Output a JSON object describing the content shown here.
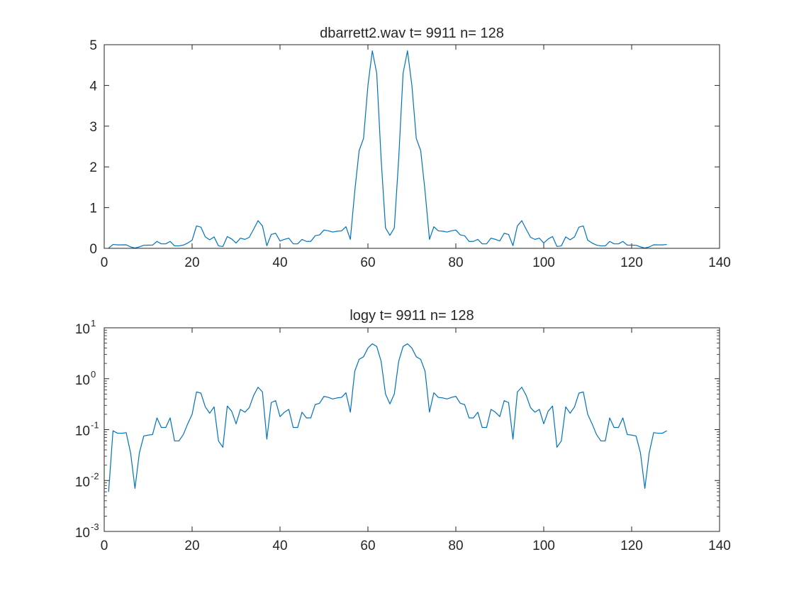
{
  "chart_data": [
    {
      "type": "line",
      "title": "dbarrett2.wav  t= 9911 n= 128",
      "xlabel": "",
      "ylabel": "",
      "xlim": [
        0,
        140
      ],
      "ylim": [
        0,
        5
      ],
      "yscale": "linear",
      "x_ticks": [
        "0",
        "20",
        "40",
        "60",
        "80",
        "100",
        "120",
        "140"
      ],
      "y_ticks": [
        "0",
        "1",
        "2",
        "3",
        "4",
        "5"
      ],
      "grid": false,
      "line_color": "#0072bd",
      "x": [
        1,
        2,
        3,
        4,
        5,
        6,
        7,
        8,
        9,
        10,
        11,
        12,
        13,
        14,
        15,
        16,
        17,
        18,
        19,
        20,
        21,
        22,
        23,
        24,
        25,
        26,
        27,
        28,
        29,
        30,
        31,
        32,
        33,
        34,
        35,
        36,
        37,
        38,
        39,
        40,
        41,
        42,
        43,
        44,
        45,
        46,
        47,
        48,
        49,
        50,
        51,
        52,
        53,
        54,
        55,
        56,
        57,
        58,
        59,
        60,
        61,
        62,
        63,
        64,
        65,
        66,
        67,
        68,
        69,
        70,
        71,
        72,
        73,
        74,
        75,
        76,
        77,
        78,
        79,
        80,
        81,
        82,
        83,
        84,
        85,
        86,
        87,
        88,
        89,
        90,
        91,
        92,
        93,
        94,
        95,
        96,
        97,
        98,
        99,
        100,
        101,
        102,
        103,
        104,
        105,
        106,
        107,
        108,
        109,
        110,
        111,
        112,
        113,
        114,
        115,
        116,
        117,
        118,
        119,
        120,
        121,
        122,
        123,
        124,
        125,
        126,
        127,
        128
      ],
      "y": [
        0.006,
        0.095,
        0.085,
        0.085,
        0.087,
        0.035,
        0.007,
        0.035,
        0.075,
        0.078,
        0.08,
        0.17,
        0.11,
        0.11,
        0.17,
        0.06,
        0.06,
        0.08,
        0.13,
        0.2,
        0.55,
        0.52,
        0.28,
        0.21,
        0.28,
        0.06,
        0.045,
        0.29,
        0.23,
        0.13,
        0.25,
        0.22,
        0.27,
        0.47,
        0.68,
        0.55,
        0.065,
        0.34,
        0.37,
        0.18,
        0.22,
        0.25,
        0.11,
        0.11,
        0.22,
        0.17,
        0.17,
        0.31,
        0.33,
        0.45,
        0.43,
        0.4,
        0.42,
        0.43,
        0.53,
        0.22,
        1.4,
        2.4,
        2.7,
        4.0,
        4.85,
        4.3,
        2.2,
        0.5,
        0.32,
        0.5,
        2.2,
        4.3,
        4.85,
        4.0,
        2.7,
        2.4,
        1.4,
        0.22,
        0.53,
        0.43,
        0.42,
        0.4,
        0.43,
        0.45,
        0.33,
        0.31,
        0.17,
        0.17,
        0.22,
        0.11,
        0.11,
        0.25,
        0.22,
        0.18,
        0.37,
        0.34,
        0.065,
        0.55,
        0.68,
        0.47,
        0.27,
        0.22,
        0.25,
        0.13,
        0.23,
        0.29,
        0.045,
        0.06,
        0.28,
        0.21,
        0.28,
        0.52,
        0.55,
        0.2,
        0.13,
        0.08,
        0.06,
        0.06,
        0.17,
        0.11,
        0.11,
        0.17,
        0.08,
        0.078,
        0.075,
        0.035,
        0.007,
        0.035,
        0.087,
        0.085,
        0.085,
        0.095
      ]
    },
    {
      "type": "line",
      "title": "logy t= 9911 n= 128",
      "xlabel": "",
      "ylabel": "",
      "xlim": [
        0,
        140
      ],
      "ylim": [
        0.001,
        10
      ],
      "yscale": "log",
      "x_ticks": [
        "0",
        "20",
        "40",
        "60",
        "80",
        "100",
        "120",
        "140"
      ],
      "y_ticks": [
        {
          "base": "10",
          "exp": "1"
        },
        {
          "base": "10",
          "exp": "0"
        },
        {
          "base": "10",
          "exp": "-1"
        },
        {
          "base": "10",
          "exp": "-2"
        },
        {
          "base": "10",
          "exp": "-3"
        }
      ],
      "grid": false,
      "line_color": "#0072bd",
      "same_series_as": 0
    }
  ]
}
